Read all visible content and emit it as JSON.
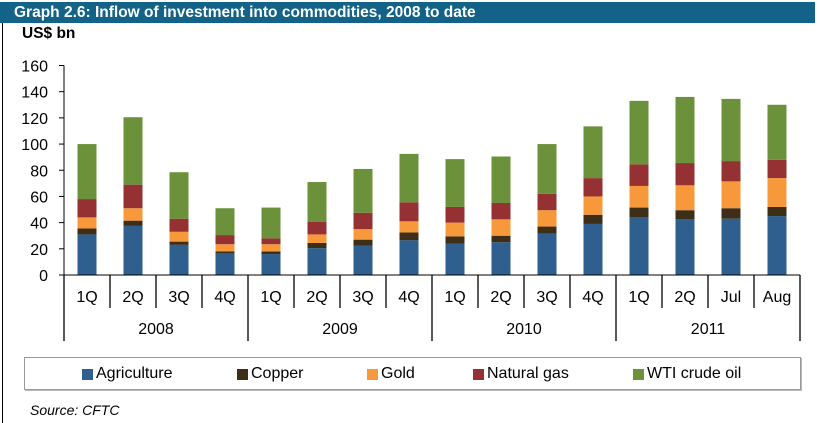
{
  "header": {
    "title": "Graph 2.6: Inflow of investment into commodities, 2008 to date"
  },
  "source": "Source: CFTC",
  "chart_data": {
    "type": "bar",
    "stacked": true,
    "title": "Graph 2.6: Inflow of investment into commodities, 2008 to date",
    "ylabel": "US$ bn",
    "xlabel": "",
    "ylim": [
      0,
      160
    ],
    "yticks": [
      0,
      20,
      40,
      60,
      80,
      100,
      120,
      140,
      160
    ],
    "grid": false,
    "legend_position": "bottom",
    "categories": [
      "1Q",
      "2Q",
      "3Q",
      "4Q",
      "1Q",
      "2Q",
      "3Q",
      "4Q",
      "1Q",
      "2Q",
      "3Q",
      "4Q",
      "1Q",
      "2Q",
      "Jul",
      "Aug"
    ],
    "groups": [
      {
        "label": "2008",
        "count": 4
      },
      {
        "label": "2009",
        "count": 4
      },
      {
        "label": "2010",
        "count": 4
      },
      {
        "label": "2011",
        "count": 4
      }
    ],
    "series": [
      {
        "name": "Agriculture",
        "color": "#2E5F8F",
        "values": [
          31,
          37.5,
          23,
          16.5,
          16,
          20.5,
          22.5,
          26.5,
          24,
          25,
          31.5,
          39,
          44,
          42.5,
          43,
          45
        ]
      },
      {
        "name": "Copper",
        "color": "#3E2D17",
        "values": [
          4.5,
          4,
          2.5,
          1.5,
          2,
          4,
          4.5,
          6,
          5.5,
          5,
          5.5,
          7,
          7.5,
          7,
          8,
          7
        ]
      },
      {
        "name": "Gold",
        "color": "#F7993A",
        "values": [
          8.5,
          9.5,
          7.5,
          5.5,
          5.5,
          6.5,
          8,
          8.5,
          10.5,
          12.5,
          12.5,
          14,
          16.5,
          19,
          20.5,
          22
        ]
      },
      {
        "name": "Natural gas",
        "color": "#953033",
        "values": [
          14,
          18,
          10,
          7,
          4.5,
          9.5,
          12.5,
          14.5,
          12,
          12.5,
          12.5,
          14,
          16.5,
          17,
          15.5,
          14
        ]
      },
      {
        "name": "WTI crude oil",
        "color": "#6B913A",
        "values": [
          42,
          51.5,
          35.5,
          20.5,
          23.5,
          30.5,
          33.5,
          37,
          36.5,
          35.5,
          38,
          39.5,
          48.5,
          50.5,
          47.5,
          42
        ]
      }
    ]
  }
}
